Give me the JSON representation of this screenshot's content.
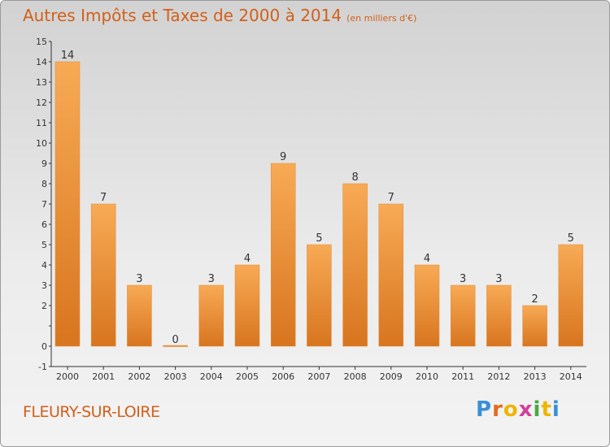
{
  "header": {
    "title": "Autres Impôts et Taxes de 2000 à 2014",
    "unit": "(en milliers d'€)"
  },
  "footer": {
    "commune": "FLEURY-SUR-LOIRE",
    "brand": "Proxiti",
    "brand_colors": [
      "#3a8fd6",
      "#e46a1d",
      "#f0b400",
      "#d23f9a",
      "#49a942",
      "#f0b400",
      "#3a8fd6"
    ]
  },
  "chart_data": {
    "type": "bar",
    "categories": [
      "2000",
      "2001",
      "2002",
      "2003",
      "2004",
      "2005",
      "2006",
      "2007",
      "2008",
      "2009",
      "2010",
      "2011",
      "2012",
      "2013",
      "2014"
    ],
    "values": [
      14,
      7,
      3,
      0,
      3,
      4,
      9,
      5,
      8,
      7,
      4,
      3,
      3,
      2,
      5
    ],
    "data_labels": [
      "14",
      "7",
      "3",
      "0",
      "3",
      "4",
      "9",
      "5",
      "8",
      "7",
      "4",
      "3",
      "3",
      "2",
      "5"
    ],
    "ylim": [
      -1,
      15
    ],
    "yticks": [
      -1,
      0,
      1,
      2,
      3,
      4,
      5,
      6,
      7,
      8,
      9,
      10,
      11,
      12,
      13,
      14,
      15
    ],
    "ytick_labels": [
      "-1",
      "0",
      "",
      "2",
      "3",
      "4",
      "5",
      "6",
      "7",
      "8",
      "9",
      "10",
      "11",
      "12",
      "13",
      "14",
      "15"
    ],
    "bar_color": "#f19c4a",
    "grid": false
  }
}
